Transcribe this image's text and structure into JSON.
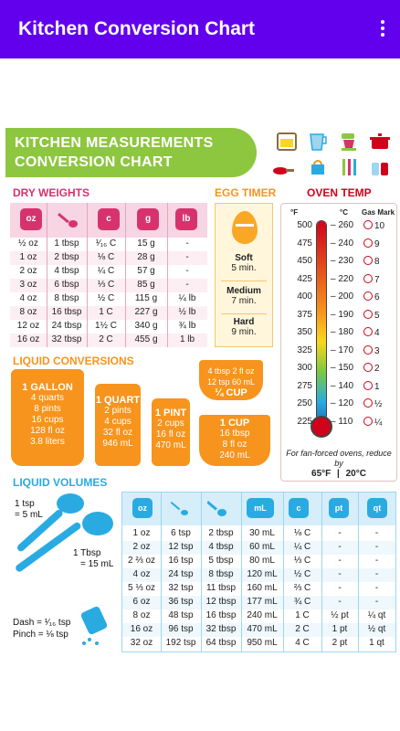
{
  "appbar": {
    "title": "Kitchen Conversion Chart",
    "more_icon": "more-vert-icon"
  },
  "banner": {
    "line1": "KITCHEN MEASUREMENTS",
    "line2": "CONVERSION CHART"
  },
  "colors": {
    "appbar": "#6200ee",
    "banner": "#8dc63f",
    "dry": "#d6336c",
    "egg": "#f7941d",
    "oven": "#d0021b",
    "liquid": "#f7941d",
    "volume": "#29abe2"
  },
  "dry_weights": {
    "title": "DRY WEIGHTS",
    "headers": [
      "oz",
      "",
      "c",
      "g",
      "lb"
    ],
    "rows": [
      [
        "½ oz",
        "1 tbsp",
        "¹⁄₁₆ C",
        "15 g",
        "-"
      ],
      [
        "1 oz",
        "2 tbsp",
        "⅛ C",
        "28 g",
        "-"
      ],
      [
        "2 oz",
        "4 tbsp",
        "¼ C",
        "57 g",
        "-"
      ],
      [
        "3 oz",
        "6 tbsp",
        "⅓ C",
        "85 g",
        "-"
      ],
      [
        "4 oz",
        "8 tbsp",
        "½ C",
        "115 g",
        "¼ lb"
      ],
      [
        "8 oz",
        "16 tbsp",
        "1 C",
        "227 g",
        "½ lb"
      ],
      [
        "12 oz",
        "24 tbsp",
        "1½ C",
        "340 g",
        "¾ lb"
      ],
      [
        "16 oz",
        "32 tbsp",
        "2 C",
        "455 g",
        "1 lb"
      ]
    ]
  },
  "egg_timer": {
    "title": "EGG TIMER",
    "items": [
      {
        "label": "Soft",
        "time": "5 min."
      },
      {
        "label": "Medium",
        "time": "7 min."
      },
      {
        "label": "Hard",
        "time": "9 min."
      }
    ]
  },
  "oven_temp": {
    "title": "OVEN TEMP",
    "head_f": "°F",
    "head_c": "°C",
    "head_gas": "Gas Mark",
    "rows": [
      [
        "500",
        "260",
        "10"
      ],
      [
        "475",
        "240",
        "9"
      ],
      [
        "450",
        "230",
        "8"
      ],
      [
        "425",
        "220",
        "7"
      ],
      [
        "400",
        "200",
        "6"
      ],
      [
        "375",
        "190",
        "5"
      ],
      [
        "350",
        "180",
        "4"
      ],
      [
        "325",
        "170",
        "3"
      ],
      [
        "300",
        "150",
        "2"
      ],
      [
        "275",
        "140",
        "1"
      ],
      [
        "250",
        "120",
        "½"
      ],
      [
        "225",
        "110",
        "¼"
      ]
    ],
    "note": "For fan-forced ovens, reduce by",
    "note_f": "65°F",
    "note_c": "20°C"
  },
  "liquid_conversions": {
    "title": "LIQUID CONVERSIONS",
    "gallon": {
      "name": "1 GALLON",
      "lines": [
        "4 quarts",
        "8 pints",
        "16 cups",
        "128 fl oz",
        "3.8 liters"
      ]
    },
    "quart": {
      "name": "1 QUART",
      "lines": [
        "2 pints",
        "4 cups",
        "32 fl oz",
        "946 mL"
      ]
    },
    "pint": {
      "name": "1 PINT",
      "lines": [
        "2 cups",
        "16 fl oz",
        "470 mL"
      ]
    },
    "quarter": {
      "lines": [
        "4 tbsp  2 fl oz",
        "12 tsp  60 mL"
      ],
      "name": "¼ CUP"
    },
    "cup": {
      "name": "1 CUP",
      "lines": [
        "16 tbsp",
        "8 fl oz",
        "240 mL"
      ]
    }
  },
  "liquid_volumes": {
    "title": "LIQUID VOLUMES",
    "tsp_label": "1 tsp",
    "tsp_value": "= 5 mL",
    "tbsp_label": "1 Tbsp",
    "tbsp_value": "= 15 mL",
    "dash": "Dash = ¹⁄₁₆ tsp",
    "pinch": "Pinch = ⅛ tsp",
    "headers": [
      "oz",
      "",
      "",
      "mL",
      "c",
      "pt",
      "qt"
    ],
    "rows": [
      [
        "1 oz",
        "6 tsp",
        "2 tbsp",
        "30 mL",
        "⅛ C",
        "-",
        "-"
      ],
      [
        "2 oz",
        "12 tsp",
        "4 tbsp",
        "60 mL",
        "¼ C",
        "-",
        "-"
      ],
      [
        "2 ⅔ oz",
        "16 tsp",
        "5 tbsp",
        "80 mL",
        "⅓ C",
        "-",
        "-"
      ],
      [
        "4 oz",
        "24 tsp",
        "8 tbsp",
        "120 mL",
        "½ C",
        "-",
        "-"
      ],
      [
        "5 ⅓ oz",
        "32 tsp",
        "11 tbsp",
        "160 mL",
        "⅔ C",
        "-",
        "-"
      ],
      [
        "6 oz",
        "36 tsp",
        "12 tbsp",
        "177 mL",
        "¾ C",
        "-",
        "-"
      ],
      [
        "8 oz",
        "48 tsp",
        "16 tbsp",
        "240 mL",
        "1 C",
        "½ pt",
        "¼ qt"
      ],
      [
        "16 oz",
        "96 tsp",
        "32 tbsp",
        "470 mL",
        "2 C",
        "1 pt",
        "½ qt"
      ],
      [
        "32 oz",
        "192 tsp",
        "64 tbsp",
        "950 mL",
        "4 C",
        "2 pt",
        "1 qt"
      ]
    ]
  }
}
